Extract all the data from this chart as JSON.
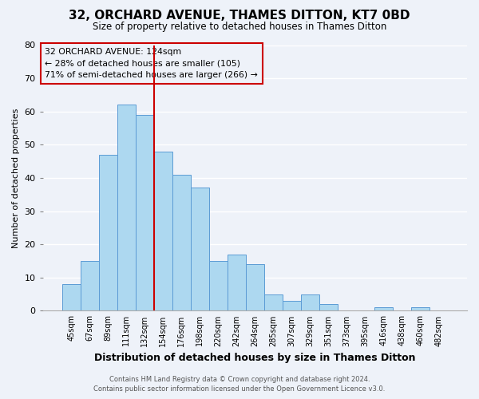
{
  "title": "32, ORCHARD AVENUE, THAMES DITTON, KT7 0BD",
  "subtitle": "Size of property relative to detached houses in Thames Ditton",
  "xlabel": "Distribution of detached houses by size in Thames Ditton",
  "ylabel": "Number of detached properties",
  "bin_labels": [
    "45sqm",
    "67sqm",
    "89sqm",
    "111sqm",
    "132sqm",
    "154sqm",
    "176sqm",
    "198sqm",
    "220sqm",
    "242sqm",
    "264sqm",
    "285sqm",
    "307sqm",
    "329sqm",
    "351sqm",
    "373sqm",
    "395sqm",
    "416sqm",
    "438sqm",
    "460sqm",
    "482sqm"
  ],
  "bar_values": [
    8,
    15,
    47,
    62,
    59,
    48,
    41,
    37,
    15,
    17,
    14,
    5,
    3,
    5,
    2,
    0,
    0,
    1,
    0,
    1,
    0
  ],
  "bar_color": "#add8f0",
  "bar_edge_color": "#5b9bd5",
  "highlight_line_color": "#cc0000",
  "highlight_bin": "132sqm",
  "property_size": "124sqm",
  "pct_smaller": "28%",
  "n_smaller": 105,
  "pct_larger_semi": "71%",
  "n_larger_semi": 266,
  "annotation_box_edge_color": "#cc0000",
  "ylim": [
    0,
    80
  ],
  "yticks": [
    0,
    10,
    20,
    30,
    40,
    50,
    60,
    70,
    80
  ],
  "footer_line1": "Contains HM Land Registry data © Crown copyright and database right 2024.",
  "footer_line2": "Contains public sector information licensed under the Open Government Licence v3.0.",
  "background_color": "#eef2f9",
  "grid_color": "#ffffff"
}
